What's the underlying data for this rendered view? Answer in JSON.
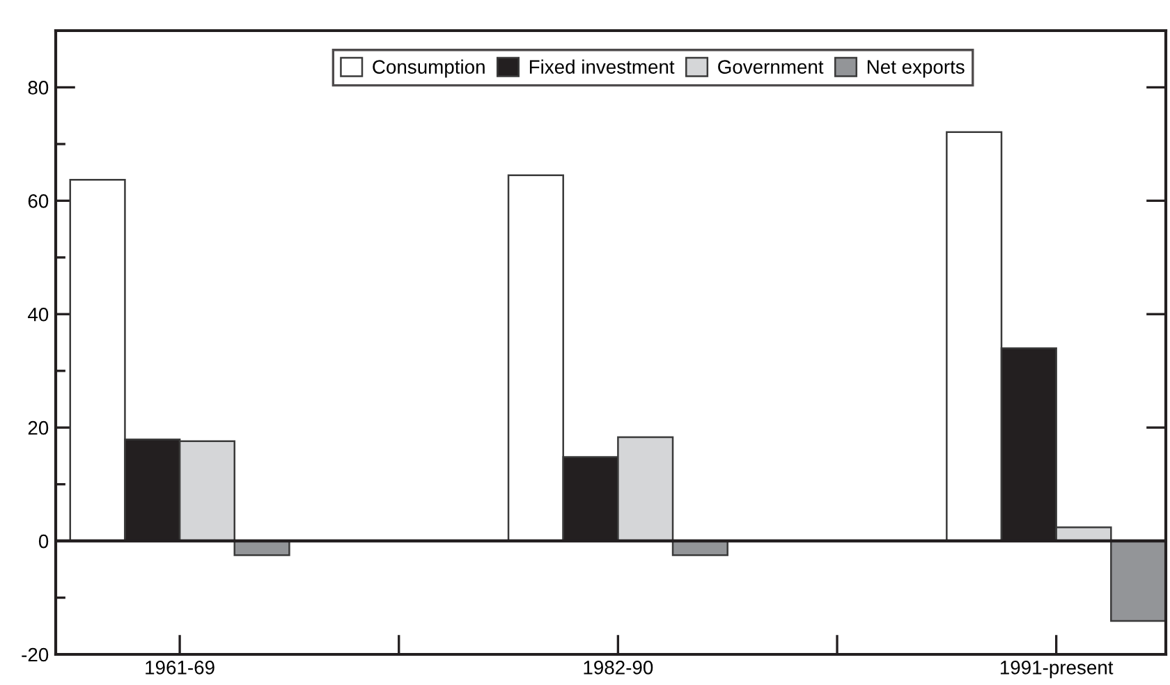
{
  "chart_data": {
    "type": "bar",
    "categories": [
      "1961-69",
      "1982-90",
      "1991-present"
    ],
    "series": [
      {
        "name": "Consumption",
        "color": "#ffffff",
        "values": [
          63.7,
          64.5,
          72.1
        ]
      },
      {
        "name": "Fixed investment",
        "color": "#231f20",
        "values": [
          17.9,
          14.8,
          34.0
        ]
      },
      {
        "name": "Government",
        "color": "#d5d6d8",
        "values": [
          17.6,
          18.3,
          2.4
        ]
      },
      {
        "name": "Net exports",
        "color": "#939598",
        "values": [
          -2.5,
          -2.5,
          -14.1
        ]
      }
    ],
    "ylim": [
      -20,
      90
    ],
    "yticks": [
      -20,
      {
        "value": -10,
        "label": null
      },
      0,
      {
        "value": 10,
        "label": null
      },
      20,
      {
        "value": 30,
        "label": null
      },
      40,
      {
        "value": 50,
        "label": null
      },
      60,
      {
        "value": 70,
        "label": null
      },
      80
    ],
    "ref_lines": [
      {
        "axis": "y",
        "value": 0
      }
    ],
    "legend": "top",
    "grid": false
  }
}
